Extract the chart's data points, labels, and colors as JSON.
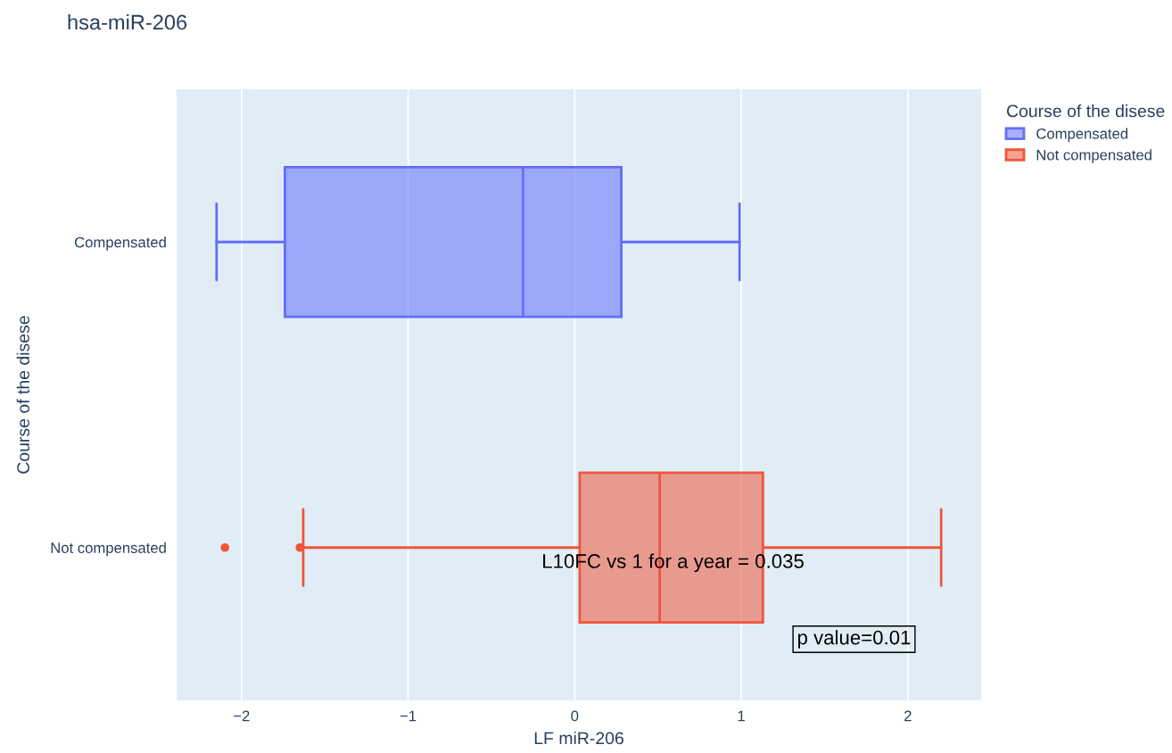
{
  "chart_data": {
    "type": "box",
    "orientation": "horizontal",
    "title": "hsa-miR-206",
    "xlabel": "LF miR-206",
    "ylabel": "Course of the disese",
    "legend_title": "Course of the disese",
    "categories": [
      "Compensated",
      "Not compensated"
    ],
    "series": [
      {
        "name": "Compensated",
        "color": "#636efa",
        "boxes": [
          {
            "low": -2.15,
            "q1": -1.74,
            "median": -0.31,
            "q3": 0.28,
            "high": 0.99
          },
          null
        ]
      },
      {
        "name": "Not compensated",
        "color": "#ef553b",
        "boxes": [
          null,
          {
            "low": -1.63,
            "q1": 0.03,
            "median": 0.51,
            "q3": 1.13,
            "high": 2.2,
            "outliers": [
              -2.1,
              -1.65
            ]
          }
        ]
      }
    ],
    "xlim": [
      -2.39,
      2.44
    ],
    "xticks": [
      {
        "value": -2,
        "label": "−2"
      },
      {
        "value": -1,
        "label": "−1"
      },
      0,
      1,
      2
    ],
    "grid": "x",
    "legend": "top right",
    "annotations": [
      "L10FC vs 1 for a year = 0.035",
      "p value=0.01"
    ]
  }
}
